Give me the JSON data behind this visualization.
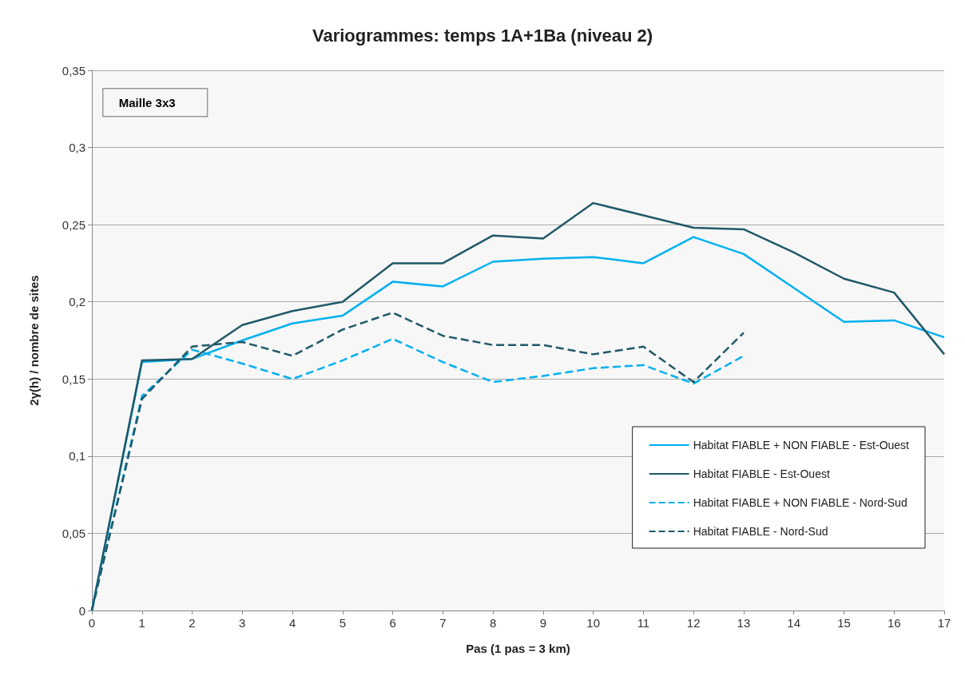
{
  "chart_data": {
    "type": "line",
    "title": "Variogrammes: temps 1A+1Ba (niveau 2)",
    "xlabel": "Pas (1 pas = 3 km)",
    "ylabel": "2γ(h) / nombre de sites",
    "annotations": [
      "Maille 3x3"
    ],
    "x": [
      0,
      1,
      2,
      3,
      4,
      5,
      6,
      7,
      8,
      9,
      10,
      11,
      12,
      13,
      14,
      15,
      16,
      17
    ],
    "series": [
      {
        "name": "Habitat FIABLE + NON FIABLE - Est-Ouest",
        "color": "#00b0f0",
        "line_style": "solid",
        "values": [
          0,
          0.161,
          0.163,
          0.175,
          0.186,
          0.191,
          0.213,
          0.21,
          0.226,
          0.228,
          0.229,
          0.225,
          0.242,
          0.231,
          0.209,
          0.187,
          0.188,
          0.177
        ]
      },
      {
        "name": "Habitat FIABLE - Est-Ouest",
        "color": "#215968",
        "line_style": "solid",
        "values": [
          0,
          0.162,
          0.163,
          0.185,
          0.194,
          0.2,
          0.225,
          0.225,
          0.243,
          0.241,
          0.264,
          0.256,
          0.248,
          0.247,
          0.232,
          0.215,
          0.206,
          0.166
        ]
      },
      {
        "name": "Habitat FIABLE + NON FIABLE - Nord-Sud",
        "color": "#00b0f0",
        "line_style": "dashed",
        "values": [
          0,
          0.139,
          0.169,
          0.16,
          0.15,
          0.162,
          0.176,
          0.161,
          0.148,
          0.152,
          0.157,
          0.159,
          0.147,
          0.165,
          null,
          null,
          null,
          null
        ]
      },
      {
        "name": "Habitat FIABLE - Nord-Sud",
        "color": "#215968",
        "line_style": "dashed",
        "values": [
          0,
          0.137,
          0.171,
          0.174,
          0.165,
          0.182,
          0.193,
          0.178,
          0.172,
          0.172,
          0.166,
          0.171,
          0.148,
          0.18,
          null,
          null,
          null,
          null
        ]
      }
    ],
    "xlim": [
      0,
      17
    ],
    "xticks": [
      0,
      1,
      2,
      3,
      4,
      5,
      6,
      7,
      8,
      9,
      10,
      11,
      12,
      13,
      14,
      15,
      16,
      17
    ],
    "ylim": [
      0,
      0.35
    ],
    "yticks": [
      0,
      {
        "value": 0.05,
        "label": "0,05"
      },
      {
        "value": 0.1,
        "label": "0,1"
      },
      {
        "value": 0.15,
        "label": "0,15"
      },
      {
        "value": 0.2,
        "label": "0,2"
      },
      {
        "value": 0.25,
        "label": "0,25"
      },
      {
        "value": 0.3,
        "label": "0,3"
      },
      {
        "value": 0.35,
        "label": "0,35"
      }
    ],
    "grid": "y",
    "legend": "bottom right",
    "marker": "none"
  }
}
